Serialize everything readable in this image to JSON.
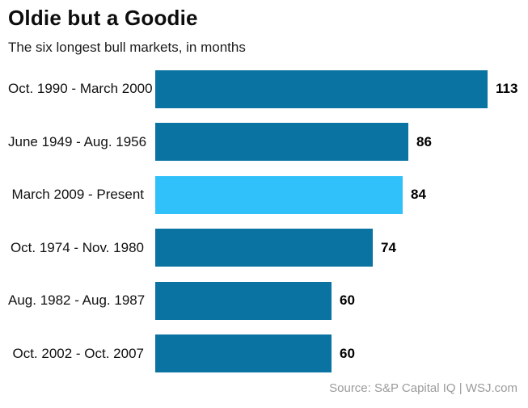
{
  "header": {
    "title": "Oldie but a Goodie",
    "subtitle": "The six longest bull markets, in months"
  },
  "colors": {
    "bar": "#0b73a2",
    "highlight": "#30c1fa",
    "value_text": "#000000",
    "source_text": "#9b9b9b"
  },
  "chart_data": {
    "type": "bar",
    "orientation": "horizontal",
    "title": "Oldie but a Goodie",
    "subtitle": "The six longest bull markets, in months",
    "unit": "months",
    "categories": [
      "Oct. 1990 - March 2000",
      "June 1949 - Aug. 1956",
      "March 2009 - Present",
      "Oct. 1974 - Nov. 1980",
      "Aug. 1982 - Aug. 1987",
      "Oct. 2002 - Oct. 2007"
    ],
    "values": [
      113,
      86,
      84,
      74,
      60,
      60
    ],
    "highlight_index": 2,
    "xlim": [
      0,
      113
    ],
    "grid": false,
    "legend": false,
    "data_labels": "end-of-bar"
  },
  "footer": {
    "source": "Source: S&P Capital IQ  |  WSJ.com"
  }
}
